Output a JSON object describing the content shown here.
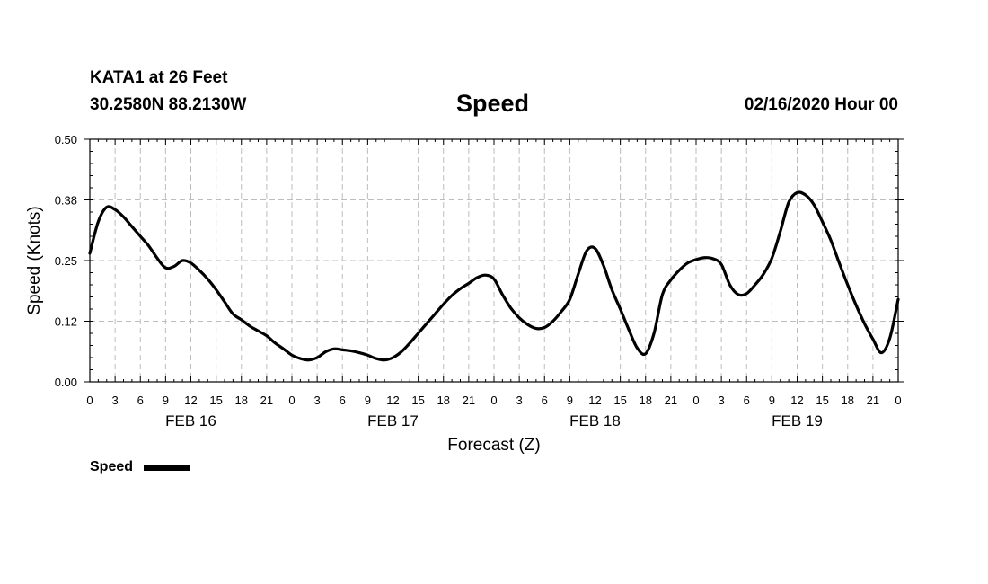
{
  "header": {
    "station": "KATA1 at 26 Feet",
    "coords": "30.2580N 88.2130W",
    "title": "Speed",
    "datetime": "02/16/2020 Hour 00"
  },
  "chart_data": {
    "type": "line",
    "title": "Speed",
    "xlabel": "Forecast (Z)",
    "ylabel": "Speed (Knots)",
    "ylim": [
      0,
      0.5
    ],
    "xlim": [
      0,
      96
    ],
    "grid": true,
    "yticks": [
      "0.00",
      "0.12",
      "0.25",
      "0.38",
      "0.50"
    ],
    "ytick_values": [
      0,
      0.125,
      0.25,
      0.375,
      0.5
    ],
    "xtick_hours": [
      0,
      3,
      6,
      9,
      12,
      15,
      18,
      21,
      24,
      27,
      30,
      33,
      36,
      39,
      42,
      45,
      48,
      51,
      54,
      57,
      60,
      63,
      66,
      69,
      72,
      75,
      78,
      81,
      84,
      87,
      90,
      93,
      96
    ],
    "xtick_labels": [
      "0",
      "3",
      "6",
      "9",
      "12",
      "15",
      "18",
      "21",
      "0",
      "3",
      "6",
      "9",
      "12",
      "15",
      "18",
      "21",
      "0",
      "3",
      "6",
      "9",
      "12",
      "15",
      "18",
      "21",
      "0",
      "3",
      "6",
      "9",
      "12",
      "15",
      "18",
      "21",
      "0"
    ],
    "day_labels": [
      {
        "label": "FEB 16",
        "hour": 12
      },
      {
        "label": "FEB 17",
        "hour": 36
      },
      {
        "label": "FEB 18",
        "hour": 60
      },
      {
        "label": "FEB 19",
        "hour": 84
      }
    ],
    "legend": {
      "label": "Speed",
      "position": "bottom-left"
    },
    "series": [
      {
        "name": "Speed",
        "x": [
          0,
          1,
          2,
          3,
          4,
          5,
          6,
          7,
          8,
          9,
          10,
          11,
          12,
          13,
          14,
          15,
          16,
          17,
          18,
          19,
          20,
          21,
          22,
          23,
          24,
          25,
          26,
          27,
          28,
          29,
          30,
          31,
          32,
          33,
          34,
          35,
          36,
          37,
          38,
          39,
          40,
          41,
          42,
          43,
          44,
          45,
          46,
          47,
          48,
          49,
          50,
          51,
          52,
          53,
          54,
          55,
          56,
          57,
          58,
          59,
          60,
          61,
          62,
          63,
          64,
          65,
          66,
          67,
          68,
          69,
          70,
          71,
          72,
          73,
          74,
          75,
          76,
          77,
          78,
          79,
          80,
          81,
          82,
          83,
          84,
          85,
          86,
          87,
          88,
          89,
          90,
          91,
          92,
          93,
          94,
          95,
          96
        ],
        "values": [
          0.265,
          0.33,
          0.36,
          0.355,
          0.34,
          0.32,
          0.3,
          0.28,
          0.255,
          0.235,
          0.238,
          0.25,
          0.245,
          0.23,
          0.212,
          0.19,
          0.165,
          0.14,
          0.128,
          0.115,
          0.105,
          0.095,
          0.08,
          0.068,
          0.055,
          0.048,
          0.045,
          0.05,
          0.062,
          0.068,
          0.066,
          0.064,
          0.06,
          0.055,
          0.048,
          0.045,
          0.05,
          0.062,
          0.08,
          0.1,
          0.12,
          0.14,
          0.16,
          0.178,
          0.192,
          0.203,
          0.215,
          0.22,
          0.212,
          0.18,
          0.152,
          0.132,
          0.118,
          0.11,
          0.112,
          0.125,
          0.145,
          0.17,
          0.222,
          0.27,
          0.275,
          0.24,
          0.19,
          0.15,
          0.108,
          0.07,
          0.058,
          0.1,
          0.18,
          0.21,
          0.23,
          0.245,
          0.252,
          0.256,
          0.254,
          0.242,
          0.2,
          0.18,
          0.182,
          0.2,
          0.222,
          0.255,
          0.31,
          0.37,
          0.39,
          0.385,
          0.365,
          0.33,
          0.292,
          0.245,
          0.2,
          0.158,
          0.12,
          0.088,
          0.06,
          0.09,
          0.17
        ]
      }
    ]
  }
}
